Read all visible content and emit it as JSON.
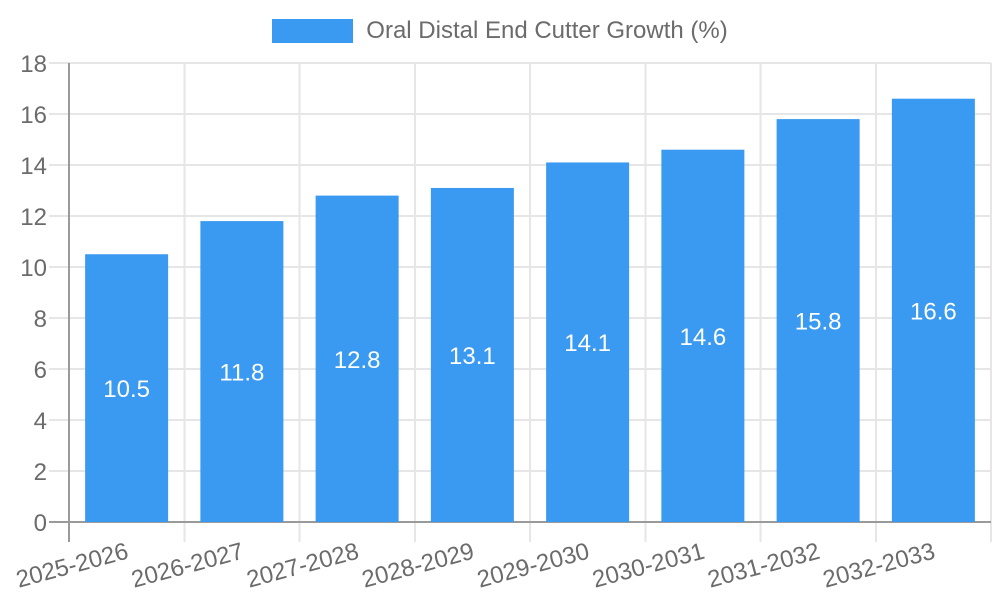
{
  "legend": {
    "label": "Oral Distal End Cutter Growth (%)"
  },
  "chart_data": {
    "type": "bar",
    "title": "Oral Distal End Cutter Growth (%)",
    "categories": [
      "2025-2026",
      "2026-2027",
      "2027-2028",
      "2028-2029",
      "2029-2030",
      "2030-2031",
      "2031-2032",
      "2032-2033"
    ],
    "values": [
      10.5,
      11.8,
      12.8,
      13.1,
      14.1,
      14.6,
      15.8,
      16.6
    ],
    "value_labels": [
      "10.5",
      "11.8",
      "12.8",
      "13.1",
      "14.1",
      "14.6",
      "15.8",
      "16.6"
    ],
    "xlabel": "",
    "ylabel": "",
    "ylim": [
      0,
      18
    ],
    "ytick_step": 2,
    "ytick_labels": [
      "0",
      "2",
      "4",
      "6",
      "8",
      "10",
      "12",
      "14",
      "16",
      "18"
    ],
    "grid": true,
    "legend_position": "top",
    "x_label_rotation_deg": -15,
    "colors": {
      "bar": "#3a99f0",
      "text": "#6b6b6b",
      "grid": "#e6e6e6",
      "axis": "#9a9a9a",
      "value_label": "#ffffff"
    }
  }
}
